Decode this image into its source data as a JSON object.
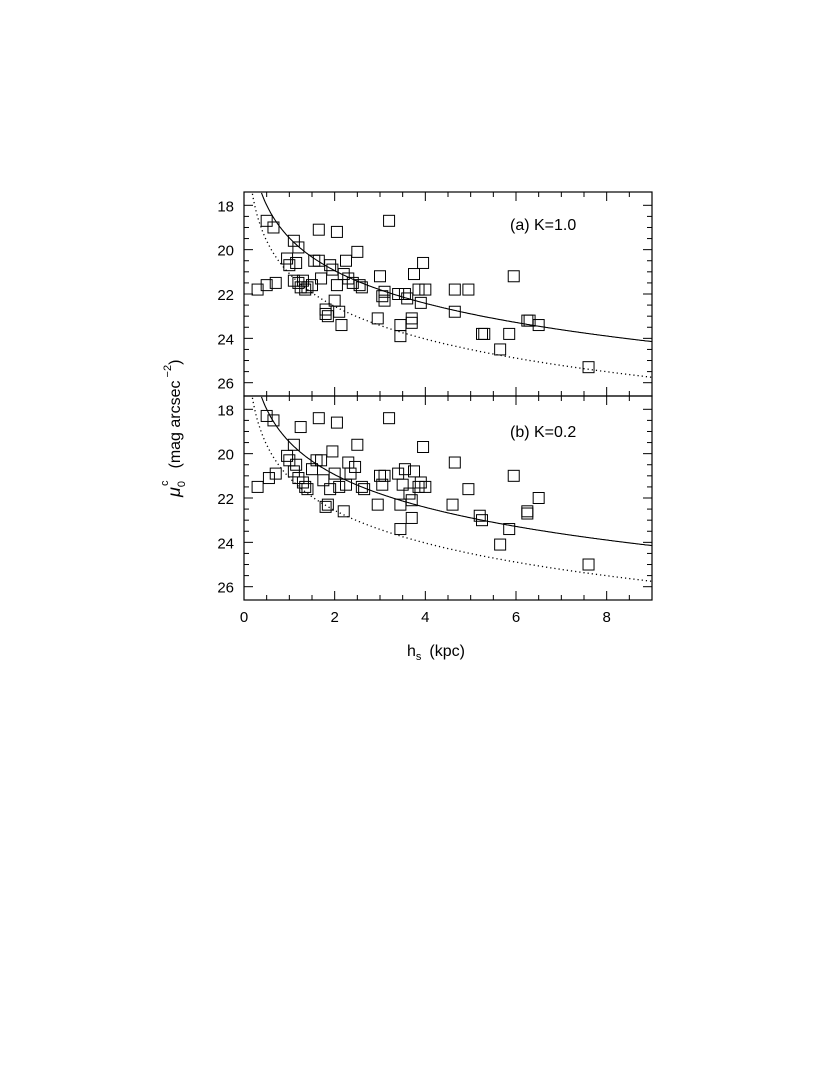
{
  "chart_data": {
    "type": "scatter",
    "xlabel": "h",
    "xlabel_sub": "s",
    "xlabel_unit": "(kpc)",
    "ylabel": "μ",
    "ylabel_sub": "0",
    "ylabel_sup": "c",
    "ylabel_unit": "(mag arcsec",
    "ylabel_unit_sup": "−2",
    "ylabel_unit_close": ")",
    "xlim": [
      0,
      9
    ],
    "ylim": [
      26.6,
      17.4
    ],
    "y_inverted": true,
    "xticks": [
      0,
      2,
      4,
      6,
      8
    ],
    "xtick_labels": [
      "0",
      "2",
      "4",
      "6",
      "8"
    ],
    "yticks": [
      18,
      20,
      22,
      24,
      26
    ],
    "ytick_labels": [
      "18",
      "20",
      "22",
      "24",
      "26"
    ],
    "marker": "open-square",
    "panels": [
      {
        "label": "(a) K=1.0",
        "solid_curve": {
          "a": 19.47,
          "b": 4.9
        },
        "dotted_curve": {
          "a": 21.08,
          "b": 4.9
        },
        "points": [
          [
            0.3,
            21.8
          ],
          [
            0.5,
            18.7
          ],
          [
            0.5,
            21.6
          ],
          [
            0.65,
            19.0
          ],
          [
            0.7,
            21.5
          ],
          [
            0.95,
            20.4
          ],
          [
            1.0,
            20.7
          ],
          [
            1.1,
            19.6
          ],
          [
            1.1,
            21.4
          ],
          [
            1.15,
            20.6
          ],
          [
            1.2,
            19.9
          ],
          [
            1.2,
            21.5
          ],
          [
            1.25,
            21.7
          ],
          [
            1.3,
            21.4
          ],
          [
            1.35,
            21.8
          ],
          [
            1.4,
            21.7
          ],
          [
            1.5,
            21.6
          ],
          [
            1.55,
            20.5
          ],
          [
            1.65,
            19.1
          ],
          [
            1.65,
            20.5
          ],
          [
            1.7,
            21.3
          ],
          [
            1.8,
            22.7
          ],
          [
            1.8,
            22.9
          ],
          [
            1.85,
            23.0
          ],
          [
            1.9,
            20.7
          ],
          [
            1.95,
            20.9
          ],
          [
            2.0,
            22.3
          ],
          [
            2.05,
            19.2
          ],
          [
            2.05,
            21.6
          ],
          [
            2.1,
            22.8
          ],
          [
            2.15,
            23.4
          ],
          [
            2.2,
            21.1
          ],
          [
            2.25,
            20.5
          ],
          [
            2.3,
            21.3
          ],
          [
            2.4,
            21.5
          ],
          [
            2.5,
            20.1
          ],
          [
            2.55,
            21.6
          ],
          [
            2.6,
            21.7
          ],
          [
            2.95,
            23.1
          ],
          [
            3.0,
            21.2
          ],
          [
            3.05,
            22.1
          ],
          [
            3.1,
            21.9
          ],
          [
            3.1,
            22.3
          ],
          [
            3.2,
            18.7
          ],
          [
            3.4,
            22.0
          ],
          [
            3.45,
            23.4
          ],
          [
            3.45,
            23.9
          ],
          [
            3.55,
            22.0
          ],
          [
            3.6,
            22.2
          ],
          [
            3.7,
            23.1
          ],
          [
            3.7,
            23.3
          ],
          [
            3.75,
            21.1
          ],
          [
            3.85,
            21.8
          ],
          [
            3.9,
            22.4
          ],
          [
            3.95,
            20.6
          ],
          [
            4.0,
            21.8
          ],
          [
            4.65,
            21.8
          ],
          [
            4.65,
            22.8
          ],
          [
            4.95,
            21.8
          ],
          [
            5.25,
            23.8
          ],
          [
            5.3,
            23.8
          ],
          [
            5.65,
            24.5
          ],
          [
            5.85,
            23.8
          ],
          [
            5.95,
            21.2
          ],
          [
            6.25,
            23.2
          ],
          [
            6.3,
            23.2
          ],
          [
            6.5,
            23.4
          ],
          [
            7.6,
            25.3
          ]
        ]
      },
      {
        "label": "(b) K=0.2",
        "solid_curve": {
          "a": 19.47,
          "b": 4.9
        },
        "dotted_curve": {
          "a": 21.08,
          "b": 4.9
        },
        "points": [
          [
            0.3,
            21.5
          ],
          [
            0.5,
            18.3
          ],
          [
            0.55,
            21.1
          ],
          [
            0.65,
            18.5
          ],
          [
            0.7,
            20.9
          ],
          [
            0.95,
            20.1
          ],
          [
            1.0,
            20.3
          ],
          [
            1.1,
            19.6
          ],
          [
            1.1,
            20.8
          ],
          [
            1.15,
            20.5
          ],
          [
            1.2,
            21.1
          ],
          [
            1.25,
            18.8
          ],
          [
            1.3,
            21.3
          ],
          [
            1.35,
            21.5
          ],
          [
            1.4,
            21.6
          ],
          [
            1.5,
            20.7
          ],
          [
            1.6,
            20.3
          ],
          [
            1.65,
            18.4
          ],
          [
            1.7,
            20.3
          ],
          [
            1.75,
            21.2
          ],
          [
            1.8,
            22.4
          ],
          [
            1.85,
            22.3
          ],
          [
            1.9,
            21.6
          ],
          [
            1.95,
            19.9
          ],
          [
            2.0,
            20.9
          ],
          [
            2.05,
            18.6
          ],
          [
            2.1,
            21.5
          ],
          [
            2.2,
            22.6
          ],
          [
            2.25,
            21.4
          ],
          [
            2.3,
            20.4
          ],
          [
            2.35,
            20.9
          ],
          [
            2.45,
            20.6
          ],
          [
            2.5,
            19.6
          ],
          [
            2.6,
            21.5
          ],
          [
            2.65,
            21.6
          ],
          [
            2.95,
            22.3
          ],
          [
            3.0,
            21.0
          ],
          [
            3.05,
            21.4
          ],
          [
            3.1,
            21.0
          ],
          [
            3.2,
            18.4
          ],
          [
            3.4,
            20.9
          ],
          [
            3.45,
            22.3
          ],
          [
            3.45,
            23.4
          ],
          [
            3.5,
            21.4
          ],
          [
            3.55,
            20.7
          ],
          [
            3.65,
            21.8
          ],
          [
            3.7,
            22.1
          ],
          [
            3.7,
            22.9
          ],
          [
            3.75,
            20.8
          ],
          [
            3.85,
            21.5
          ],
          [
            3.9,
            21.3
          ],
          [
            3.95,
            19.7
          ],
          [
            4.0,
            21.5
          ],
          [
            4.6,
            22.3
          ],
          [
            4.65,
            20.4
          ],
          [
            4.95,
            21.6
          ],
          [
            5.2,
            22.8
          ],
          [
            5.25,
            23.0
          ],
          [
            5.65,
            24.1
          ],
          [
            5.85,
            23.4
          ],
          [
            5.95,
            21.0
          ],
          [
            6.25,
            22.6
          ],
          [
            6.25,
            22.7
          ],
          [
            6.5,
            22.0
          ],
          [
            7.6,
            25.0
          ]
        ]
      }
    ]
  }
}
